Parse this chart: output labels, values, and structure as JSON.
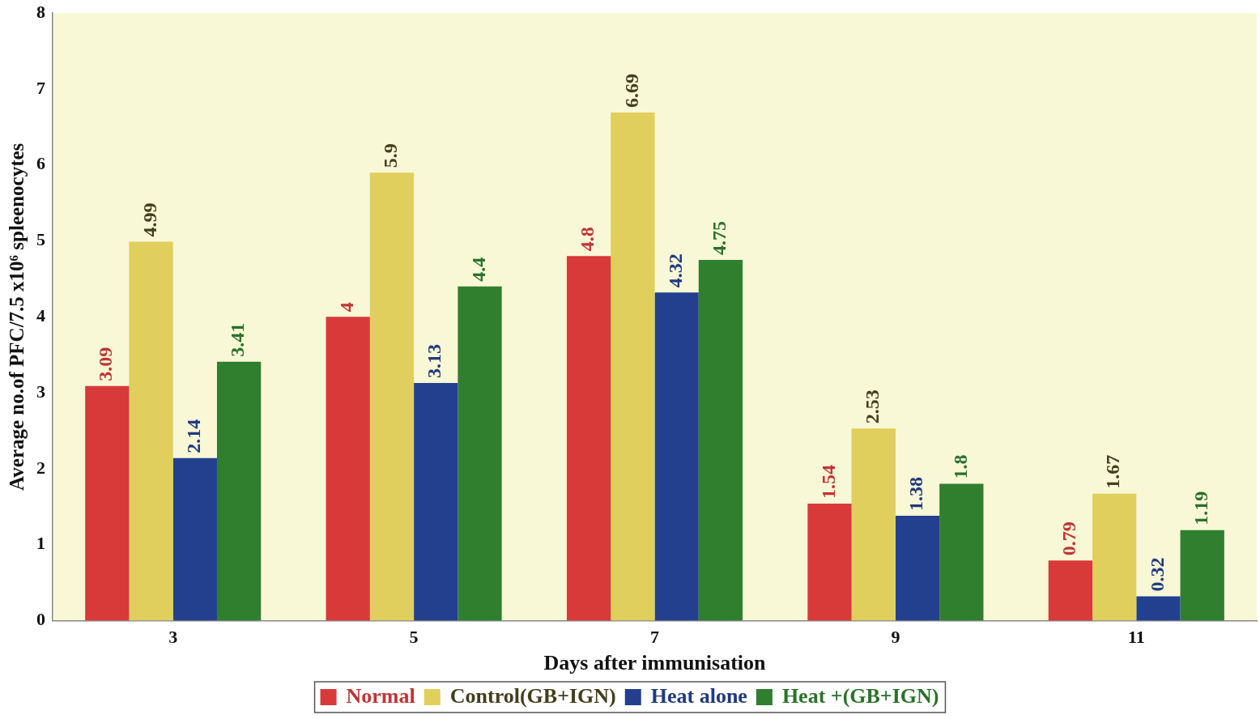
{
  "chart_data": {
    "type": "bar",
    "xlabel": "Days after immunisation",
    "ylabel": "Average no.of PFC/7.5 x10⁶ spleenocytes",
    "categories": [
      "3",
      "5",
      "7",
      "9",
      "11"
    ],
    "ylim": [
      0,
      8
    ],
    "yticks": [
      0,
      1,
      2,
      3,
      4,
      5,
      6,
      7,
      8
    ],
    "grid": false,
    "legend": "bottom",
    "data_labels": true,
    "series": [
      {
        "name": "Normal",
        "color": "#d83a3a",
        "values": [
          3.09,
          4,
          4.8,
          1.54,
          0.79
        ]
      },
      {
        "name": "Control(GB+IGN)",
        "color": "#e0cf5c",
        "values": [
          4.99,
          5.9,
          6.69,
          2.53,
          1.67
        ]
      },
      {
        "name": "Heat alone",
        "color": "#23408e",
        "values": [
          2.14,
          3.13,
          4.32,
          1.38,
          0.32
        ]
      },
      {
        "name": "Heat +(GB+IGN)",
        "color": "#2f7f2f",
        "values": [
          3.41,
          4.4,
          4.75,
          1.8,
          1.19
        ]
      }
    ]
  }
}
